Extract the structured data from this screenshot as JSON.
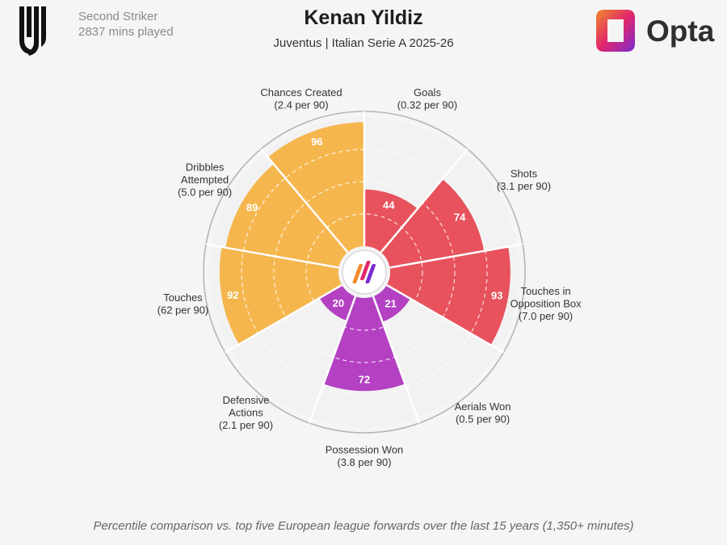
{
  "header": {
    "position": "Second Striker",
    "minutes": "2837 mins played",
    "title": "Kenan Yildiz",
    "subtitle": "Juventus | Italian Serie A 2025-26",
    "brand": "Opta",
    "club_logo_icon": "juventus-logo-icon",
    "brand_logo_icon": "opta-logo-icon"
  },
  "footer": {
    "note": "Percentile comparison vs. top five European league forwards over the last 15 years (1,350+ minutes)"
  },
  "colors": {
    "attacking": "#e8525d",
    "possession": "#f5b64d",
    "defending": "#b341c2",
    "background": "#f5f5f5",
    "segment_background": "#f2f2f2"
  },
  "chart_data": {
    "type": "polar-bar",
    "value_range": [
      0,
      100
    ],
    "grid": true,
    "metrics": [
      {
        "name": "Goals",
        "detail": "(0.32 per 90)",
        "percentile": 44,
        "group": "attacking"
      },
      {
        "name": "Shots",
        "detail": "(3.1 per 90)",
        "percentile": 74,
        "group": "attacking"
      },
      {
        "name": "Touches in Opposition Box",
        "detail": "(7.0 per 90)",
        "percentile": 93,
        "group": "attacking"
      },
      {
        "name": "Aerials Won",
        "detail": "(0.5 per 90)",
        "percentile": 21,
        "group": "defending"
      },
      {
        "name": "Possession Won",
        "detail": "(3.8 per 90)",
        "percentile": 72,
        "group": "defending"
      },
      {
        "name": "Defensive Actions",
        "detail": "(2.1 per 90)",
        "percentile": 20,
        "group": "defending"
      },
      {
        "name": "Touches",
        "detail": "(62 per 90)",
        "percentile": 92,
        "group": "possession"
      },
      {
        "name": "Dribbles Attempted",
        "detail": "(5.0 per 90)",
        "percentile": 89,
        "group": "possession"
      },
      {
        "name": "Chances Created",
        "detail": "(2.4 per 90)",
        "percentile": 96,
        "group": "possession"
      }
    ]
  }
}
